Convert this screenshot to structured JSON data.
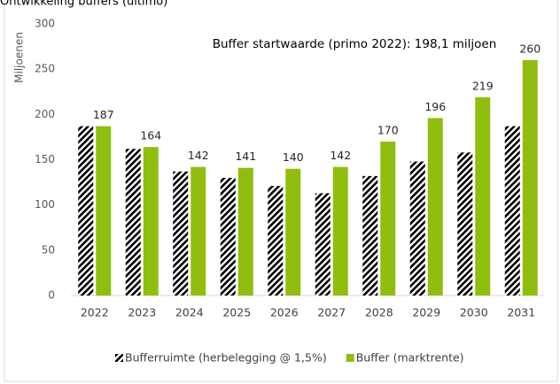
{
  "chart_data": {
    "type": "bar",
    "title": "Ontwikkeling buffers (ultimo)",
    "y_label": "Miljoenen",
    "annotation": "Buffer startwaarde (primo 2022): 198,1 miljoen",
    "categories": [
      "2022",
      "2023",
      "2024",
      "2025",
      "2026",
      "2027",
      "2028",
      "2029",
      "2030",
      "2031"
    ],
    "series": [
      {
        "name": "Bufferruimte (herbelegging @ 1,5%)",
        "color": "#000000",
        "pattern": "hatch",
        "values": [
          187,
          162,
          137,
          130,
          121,
          113,
          132,
          148,
          158,
          187
        ]
      },
      {
        "name": "Buffer (marktrente)",
        "color": "#8fbe0f",
        "values": [
          187,
          164,
          142,
          141,
          140,
          142,
          170,
          196,
          219,
          260
        ],
        "data_labels": true
      }
    ],
    "ylim": [
      0,
      300
    ],
    "yticks": [
      0,
      50,
      100,
      150,
      200,
      250,
      300
    ],
    "grid": false,
    "legend": "bottom"
  }
}
